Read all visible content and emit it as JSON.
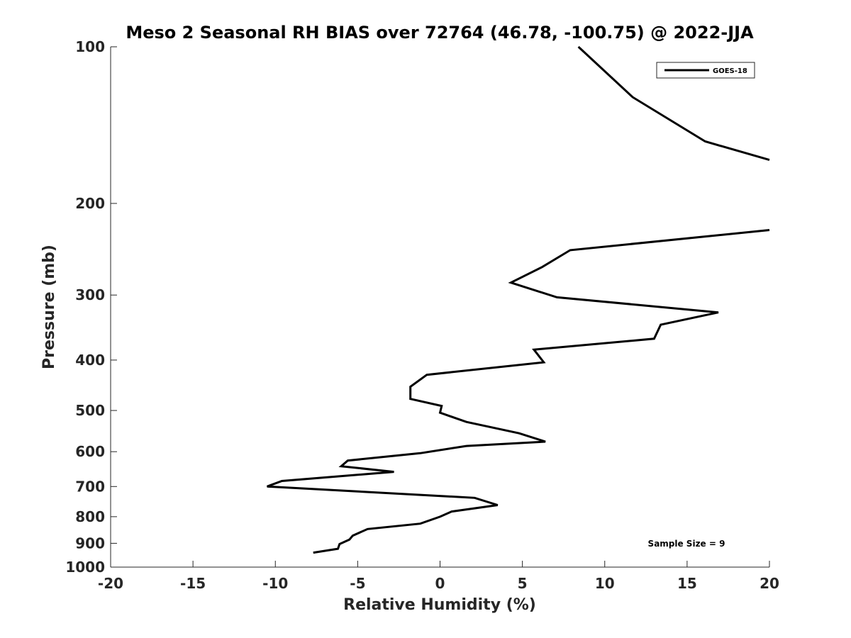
{
  "chart_data": {
    "type": "line",
    "title": "Meso 2 Seasonal RH BIAS over 72764 (46.78, -100.75) @ 2022-JJA",
    "xlabel": "Relative Humidity (%)",
    "ylabel": "Pressure (mb)",
    "xlim": [
      -20,
      20
    ],
    "ylim": [
      100,
      1000
    ],
    "yscale": "log",
    "y_reversed": true,
    "grid": false,
    "legend_position": "top-right",
    "x_ticks": [
      -20,
      -15,
      -10,
      -5,
      0,
      5,
      10,
      15,
      20
    ],
    "y_ticks": [
      100,
      200,
      300,
      400,
      500,
      600,
      700,
      800,
      900,
      1000
    ],
    "annotation": "Sample Size = 9",
    "series": [
      {
        "name": "GOES-18",
        "color": "#000000",
        "segments": [
          [
            {
              "x": 8.4,
              "y": 100
            },
            {
              "x": 11.7,
              "y": 125
            },
            {
              "x": 16.1,
              "y": 152
            },
            {
              "x": 20.0,
              "y": 165
            }
          ],
          [
            {
              "x": 20.0,
              "y": 225
            },
            {
              "x": 7.9,
              "y": 246
            },
            {
              "x": 6.2,
              "y": 265
            },
            {
              "x": 4.3,
              "y": 284
            },
            {
              "x": 7.1,
              "y": 303
            },
            {
              "x": 16.9,
              "y": 324
            },
            {
              "x": 13.4,
              "y": 342
            },
            {
              "x": 13.0,
              "y": 364
            },
            {
              "x": 5.7,
              "y": 382
            },
            {
              "x": 6.3,
              "y": 404
            },
            {
              "x": -0.8,
              "y": 427
            },
            {
              "x": -1.8,
              "y": 450
            },
            {
              "x": -1.8,
              "y": 475
            },
            {
              "x": 0.1,
              "y": 490
            },
            {
              "x": 0.0,
              "y": 505
            },
            {
              "x": 1.6,
              "y": 526
            },
            {
              "x": 4.8,
              "y": 553
            },
            {
              "x": 6.4,
              "y": 574
            },
            {
              "x": 1.6,
              "y": 585
            },
            {
              "x": -1.2,
              "y": 604
            },
            {
              "x": -5.6,
              "y": 624
            },
            {
              "x": -6.0,
              "y": 640
            },
            {
              "x": -2.8,
              "y": 656
            },
            {
              "x": -9.6,
              "y": 683
            },
            {
              "x": -10.5,
              "y": 700
            },
            {
              "x": 2.1,
              "y": 736
            },
            {
              "x": 3.5,
              "y": 760
            },
            {
              "x": 0.7,
              "y": 782
            },
            {
              "x": 0.0,
              "y": 800
            },
            {
              "x": -1.2,
              "y": 825
            },
            {
              "x": -4.4,
              "y": 845
            },
            {
              "x": -5.3,
              "y": 870
            },
            {
              "x": -5.5,
              "y": 885
            },
            {
              "x": -6.1,
              "y": 903
            },
            {
              "x": -6.2,
              "y": 922
            },
            {
              "x": -7.7,
              "y": 938
            }
          ]
        ]
      }
    ]
  }
}
